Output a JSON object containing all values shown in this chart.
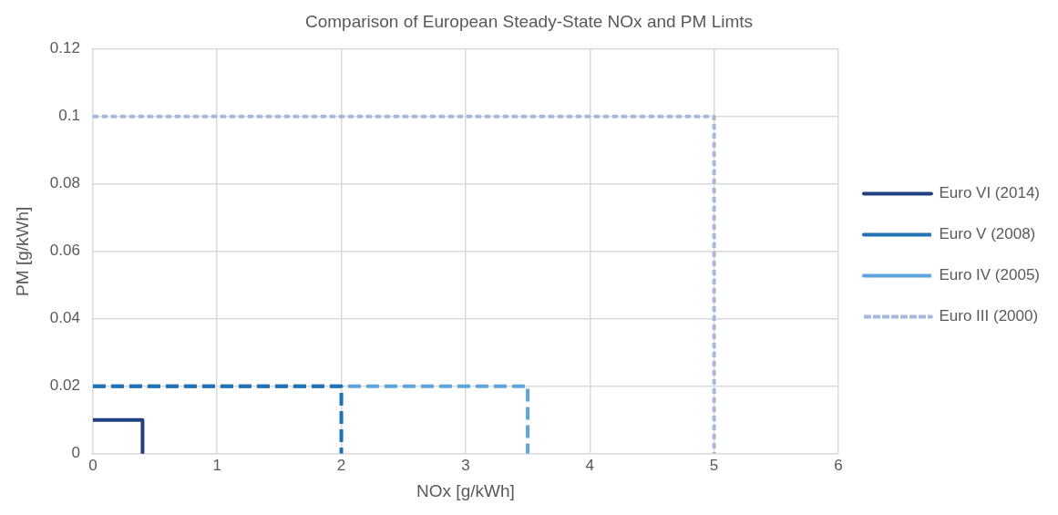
{
  "chart_data": {
    "type": "line",
    "title": "Comparison of European Steady-State NOx and PM Limts",
    "xlabel": "NOx [g/kWh]",
    "ylabel": "PM [g/kWh]",
    "xlim": [
      0,
      6
    ],
    "xticks": [
      0,
      1,
      2,
      3,
      4,
      5,
      6
    ],
    "ylim": [
      0,
      0.12
    ],
    "yticks": [
      0,
      0.02,
      0.04,
      0.06,
      0.08,
      0.1,
      0.12
    ],
    "grid": true,
    "legend": "right",
    "marker": "none",
    "series": [
      {
        "name": "Euro VI (2014)",
        "color": "#1f3f7f",
        "line_style": "solid",
        "x": [
          0,
          0.4,
          0.4
        ],
        "values": [
          0.01,
          0.01,
          0
        ]
      },
      {
        "name": "Euro V (2008)",
        "color": "#2171b5",
        "line_style": "dashed",
        "x": [
          0,
          2,
          2
        ],
        "values": [
          0.02,
          0.02,
          0
        ]
      },
      {
        "name": "Euro IV (2005)",
        "color": "#5ea5dc",
        "line_style": "dashed",
        "x": [
          0,
          3.5,
          3.5
        ],
        "values": [
          0.02,
          0.02,
          0
        ]
      },
      {
        "name": "Euro III (2000)",
        "color": "#a5b9dc",
        "line_style": "dotted",
        "x": [
          0,
          5,
          5
        ],
        "values": [
          0.1,
          0.1,
          0
        ]
      }
    ]
  }
}
